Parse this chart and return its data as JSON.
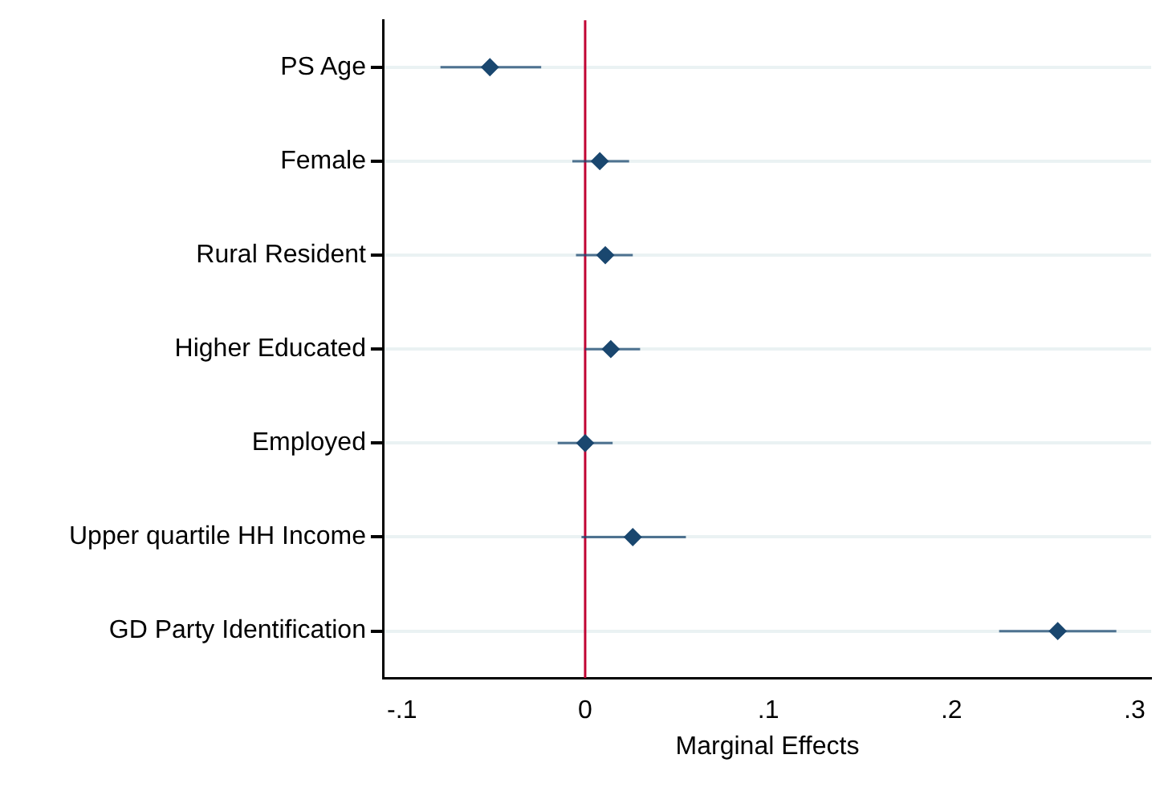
{
  "chart_data": {
    "type": "scatter",
    "orientation": "horizontal",
    "xlabel": "Marginal Effects",
    "categories": [
      "PS Age",
      "Female",
      "Rural Resident",
      "Higher Educated",
      "Employed",
      "Upper quartile HH Income",
      "GD Party Identification"
    ],
    "values": [
      -0.052,
      0.008,
      0.011,
      0.014,
      0.0,
      0.026,
      0.258
    ],
    "errors": [
      [
        -0.079,
        -0.024
      ],
      [
        -0.007,
        0.024
      ],
      [
        -0.005,
        0.026
      ],
      [
        0.0,
        0.03
      ],
      [
        -0.015,
        0.015
      ],
      [
        -0.002,
        0.055
      ],
      [
        0.226,
        0.29
      ]
    ],
    "color": "#1a476f",
    "marker": "diamond",
    "grid": "y",
    "legend": false,
    "xlim": [
      -0.11,
      0.309
    ],
    "xticks": [
      {
        "value": -0.1,
        "label": "-.1"
      },
      0,
      {
        "value": 0.1,
        "label": ".1"
      },
      {
        "value": 0.2,
        "label": ".2"
      },
      {
        "value": 0.3,
        "label": ".3"
      }
    ],
    "ref_lines": [
      {
        "axis": "x",
        "value": 0,
        "color": "#c10534"
      }
    ]
  }
}
